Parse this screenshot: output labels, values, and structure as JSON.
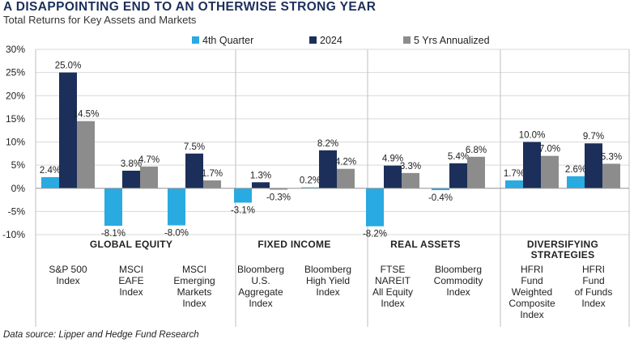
{
  "header": {
    "title": "A DISAPPOINTING END TO AN OTHERWISE STRONG YEAR",
    "subtitle": "Total Returns for Key Assets and Markets"
  },
  "footer": {
    "source": "Data source: Lipper and Hedge Fund Research"
  },
  "colors": {
    "q4": "#29aae1",
    "y2024": "#1c2f5a",
    "annualized": "#8c8c8c",
    "gridline": "#d9d9d9",
    "divider": "#bfbfbf"
  },
  "chart_data": {
    "type": "bar",
    "ylim": [
      -10,
      30
    ],
    "yticks": [
      30,
      25,
      20,
      15,
      10,
      5,
      0,
      -5,
      -10
    ],
    "ytick_labels": [
      "30%",
      "25%",
      "20%",
      "15%",
      "10%",
      "5%",
      "0%",
      "-5%",
      "-10%"
    ],
    "grid": true,
    "legend_position": "top",
    "series": [
      {
        "name": "4th Quarter",
        "color_key": "q4",
        "values": [
          2.4,
          -8.1,
          -8.0,
          -3.1,
          0.2,
          -8.2,
          -0.4,
          1.7,
          2.6
        ]
      },
      {
        "name": "2024",
        "color_key": "y2024",
        "values": [
          25.0,
          3.8,
          7.5,
          1.3,
          8.2,
          4.9,
          5.4,
          10.0,
          9.7
        ]
      },
      {
        "name": "5 Yrs Annualized",
        "color_key": "annualized",
        "values": [
          14.5,
          4.7,
          1.7,
          -0.3,
          4.2,
          3.3,
          6.8,
          7.0,
          5.3
        ]
      }
    ],
    "value_labels": [
      [
        "2.4%",
        "-8.1%",
        "-8.0%",
        "-3.1%",
        "0.2%",
        "-8.2%",
        "-0.4%",
        "1.7%",
        "2.6%"
      ],
      [
        "25.0%",
        "3.8%",
        "7.5%",
        "1.3%",
        "8.2%",
        "4.9%",
        "5.4%",
        "10.0%",
        "9.7%"
      ],
      [
        "14.5%",
        "4.7%",
        "1.7%",
        "-0.3%",
        "4.2%",
        "3.3%",
        "6.8%",
        "7.0%",
        "5.3%"
      ]
    ],
    "categories": [
      [
        "S&P 500",
        "Index"
      ],
      [
        "MSCI",
        "EAFE",
        "Index"
      ],
      [
        "MSCI",
        "Emerging",
        "Markets",
        "Index"
      ],
      [
        "Bloomberg",
        "U.S.",
        "Aggregate",
        "Index"
      ],
      [
        "Bloomberg",
        "High Yield",
        "Index"
      ],
      [
        "FTSE",
        "NAREIT",
        "All Equity",
        "Index"
      ],
      [
        "Bloomberg",
        "Commodity",
        "Index"
      ],
      [
        "HFRI",
        "Fund",
        "Weighted",
        "Composite",
        "Index"
      ],
      [
        "HFRI",
        "Fund",
        "of Funds",
        "Index"
      ]
    ],
    "groups": [
      {
        "label": [
          "GLOBAL EQUITY"
        ],
        "start": 0,
        "end": 2
      },
      {
        "label": [
          "FIXED INCOME"
        ],
        "start": 3,
        "end": 4
      },
      {
        "label": [
          "REAL ASSETS"
        ],
        "start": 5,
        "end": 6
      },
      {
        "label": [
          "DIVERSIFYING",
          "STRATEGIES"
        ],
        "start": 7,
        "end": 8
      }
    ]
  }
}
